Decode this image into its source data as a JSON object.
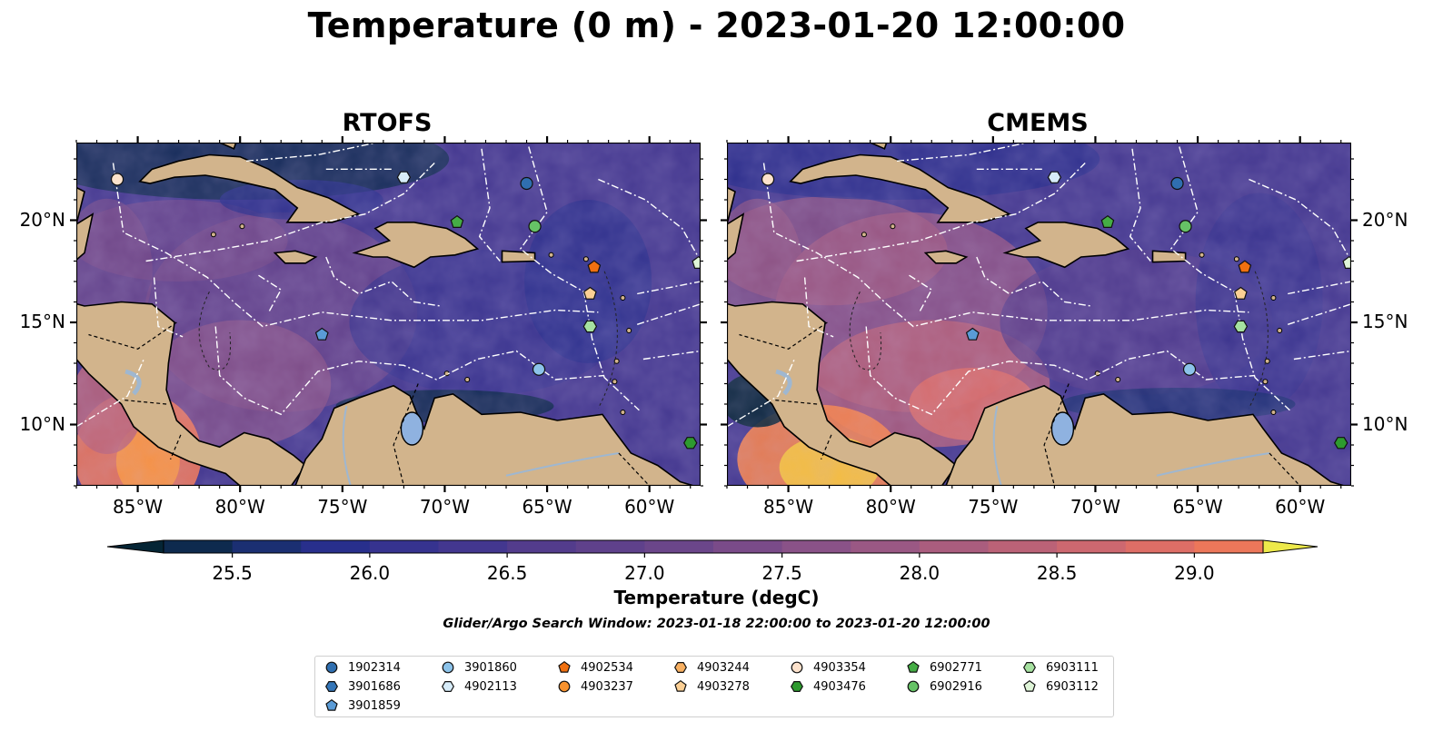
{
  "title": "Temperature (0 m) - 2023-01-20 12:00:00",
  "panels": [
    {
      "title": "RTOFS",
      "variant": "rtofs"
    },
    {
      "title": "CMEMS",
      "variant": "cmems"
    }
  ],
  "axes": {
    "lon_ticks": [
      "85°W",
      "80°W",
      "75°W",
      "70°W",
      "65°W",
      "60°W"
    ],
    "lat_ticks": [
      "20°N",
      "15°N",
      "10°N"
    ],
    "lon_range": [
      -88,
      -57.5
    ],
    "lat_range": [
      7.0,
      23.8
    ]
  },
  "colorbar": {
    "label": "Temperature (degC)",
    "ticks": [
      "25.5",
      "26.0",
      "26.5",
      "27.0",
      "27.5",
      "28.0",
      "28.5",
      "29.0"
    ],
    "min": 25.25,
    "max": 29.25,
    "step": 0.25,
    "extend": "both",
    "colors": [
      "#052535",
      "#0e2a4e",
      "#1b2f72",
      "#282f8c",
      "#36338f",
      "#43378f",
      "#533c8c",
      "#5f418b",
      "#6b468a",
      "#7a4b89",
      "#8a5288",
      "#9a5884",
      "#aa5d7e",
      "#bb6277",
      "#cd6870",
      "#de6e66",
      "#ec775a",
      "#f5834c",
      "#f9953f",
      "#fbab38",
      "#f6c43c",
      "#ede94a"
    ]
  },
  "search_window": "Glider/Argo Search Window: 2023-01-18 22:00:00 to 2023-01-20 12:00:00",
  "legend": [
    {
      "label": "1902314",
      "marker": "circle",
      "color": "#2f6fb0"
    },
    {
      "label": "3901686",
      "marker": "hexagon",
      "color": "#3476b8"
    },
    {
      "label": "3901859",
      "marker": "pentagon",
      "color": "#5a9bd6"
    },
    {
      "label": "3901860",
      "marker": "circle",
      "color": "#8cc3ea"
    },
    {
      "label": "4902113",
      "marker": "hexagon",
      "color": "#d7ecf9"
    },
    {
      "label": "4902534",
      "marker": "pentagon",
      "color": "#f07010"
    },
    {
      "label": "4903237",
      "marker": "circle",
      "color": "#f7922e"
    },
    {
      "label": "4903244",
      "marker": "hexagon",
      "color": "#f8b062"
    },
    {
      "label": "4903278",
      "marker": "pentagon",
      "color": "#fbcf94"
    },
    {
      "label": "4903354",
      "marker": "circle",
      "color": "#fde2cc"
    },
    {
      "label": "4903476",
      "marker": "hexagon",
      "color": "#2e9a2f"
    },
    {
      "label": "6902771",
      "marker": "pentagon",
      "color": "#45ad45"
    },
    {
      "label": "6902916",
      "marker": "circle",
      "color": "#66c266"
    },
    {
      "label": "6903111",
      "marker": "hexagon",
      "color": "#a6e1a0"
    },
    {
      "label": "6903112",
      "marker": "pentagon",
      "color": "#dff5d8"
    }
  ],
  "observations": [
    {
      "label": "4903354",
      "lon": -86.0,
      "lat": 22.0
    },
    {
      "label": "4902113",
      "lon": -72.0,
      "lat": 22.1
    },
    {
      "label": "1902314",
      "lon": -66.0,
      "lat": 21.8
    },
    {
      "label": "6902771",
      "lon": -69.4,
      "lat": 19.9
    },
    {
      "label": "6902916",
      "lon": -65.6,
      "lat": 19.7
    },
    {
      "label": "4902534",
      "lon": -62.7,
      "lat": 17.7
    },
    {
      "label": "6903112",
      "lon": -57.6,
      "lat": 17.9
    },
    {
      "label": "4903278",
      "lon": -62.9,
      "lat": 16.4
    },
    {
      "label": "6903111",
      "lon": -62.9,
      "lat": 14.8
    },
    {
      "label": "3901859",
      "lon": -76.0,
      "lat": 14.4
    },
    {
      "label": "3901860",
      "lon": -65.4,
      "lat": 12.7
    },
    {
      "label": "4903476",
      "lon": -58.0,
      "lat": 9.1
    }
  ]
}
